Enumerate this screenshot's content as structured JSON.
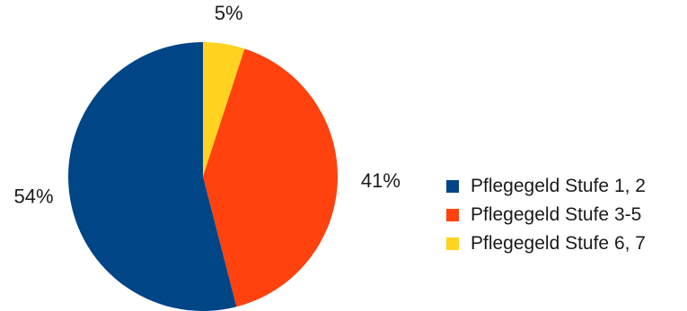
{
  "chart_data": {
    "type": "pie",
    "categories": [
      "Pflegegeld Stufe 1, 2",
      "Pflegegeld Stufe 3-5",
      "Pflegegeld Stufe 6, 7"
    ],
    "values": [
      54,
      41,
      5
    ],
    "data_labels": [
      "54%",
      "41%",
      "5%"
    ],
    "colors": [
      "#004586",
      "#ff420e",
      "#ffd320"
    ],
    "start_angle_deg": 0,
    "direction": "clockwise",
    "legend_position": "right",
    "title": ""
  }
}
